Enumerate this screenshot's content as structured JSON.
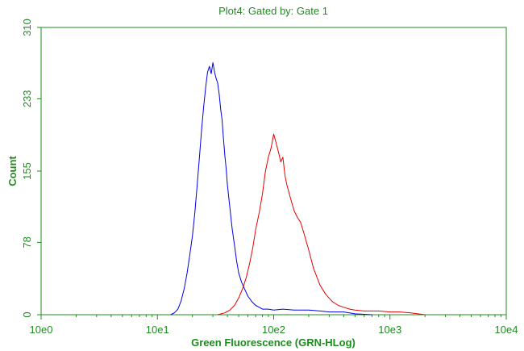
{
  "chart_data": {
    "type": "line",
    "title": "Plot4:  Gated by: Gate 1",
    "xlabel": "Green Fluorescence (GRN-HLog)",
    "ylabel": "Count",
    "x_scale": "log",
    "xlim": [
      1,
      10000
    ],
    "ylim": [
      0,
      310
    ],
    "x_ticks": [
      1,
      10,
      100,
      1000,
      10000
    ],
    "x_tick_labels": [
      "10e0",
      "10e1",
      "10e2",
      "10e3",
      "10e4"
    ],
    "y_ticks": [
      0,
      78,
      155,
      233,
      310
    ],
    "y_tick_labels": [
      "0",
      "78",
      "155",
      "233",
      "310"
    ],
    "grid": false,
    "legend": "none",
    "colors": {
      "text": "#1e8c1e",
      "axes": "#1e8c1e",
      "blue_series": "#0000e6",
      "red_series": "#e60000"
    },
    "series": [
      {
        "color": "#0000e6",
        "x": [
          13,
          14,
          15,
          16,
          17,
          18,
          19,
          20,
          21,
          22,
          23,
          24,
          25,
          26,
          27,
          28,
          29,
          30,
          31,
          32,
          33,
          34,
          35,
          36,
          37,
          38,
          39,
          40,
          42,
          44,
          46,
          48,
          50,
          53,
          56,
          60,
          65,
          70,
          75,
          80,
          90,
          100,
          120,
          150,
          200,
          250,
          300,
          400,
          500,
          700
        ],
        "y": [
          0,
          2,
          6,
          15,
          28,
          45,
          65,
          85,
          110,
          140,
          170,
          200,
          225,
          245,
          262,
          268,
          260,
          272,
          262,
          255,
          250,
          238,
          222,
          210,
          190,
          172,
          158,
          140,
          115,
          92,
          75,
          58,
          45,
          35,
          28,
          20,
          14,
          10,
          8,
          6,
          6,
          5,
          6,
          5,
          5,
          4,
          3,
          3,
          1,
          0
        ]
      },
      {
        "color": "#e60000",
        "x": [
          33,
          38,
          42,
          46,
          50,
          54,
          58,
          62,
          66,
          70,
          75,
          80,
          85,
          90,
          95,
          100,
          105,
          110,
          115,
          120,
          125,
          130,
          140,
          150,
          160,
          170,
          180,
          200,
          220,
          250,
          280,
          320,
          360,
          400,
          450,
          500,
          600,
          700,
          800,
          1000,
          1200,
          1500,
          2000
        ],
        "y": [
          0,
          2,
          5,
          10,
          18,
          28,
          40,
          55,
          72,
          92,
          110,
          130,
          155,
          170,
          180,
          195,
          185,
          175,
          165,
          170,
          150,
          140,
          125,
          112,
          105,
          100,
          90,
          70,
          50,
          32,
          22,
          14,
          10,
          8,
          6,
          5,
          4,
          4,
          4,
          3,
          3,
          2,
          0
        ]
      }
    ]
  }
}
